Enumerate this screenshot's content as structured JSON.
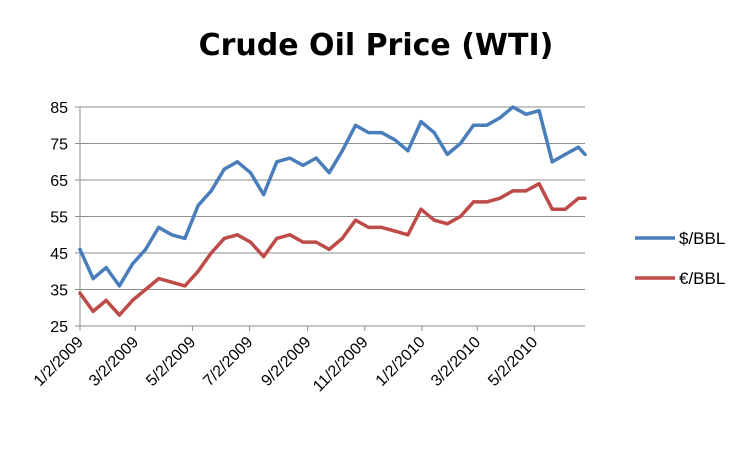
{
  "chart_data": {
    "type": "line",
    "title": "Crude Oil Price (WTI)",
    "xlabel": "",
    "ylabel": "",
    "ylim": [
      25,
      85
    ],
    "yticks": [
      25,
      35,
      45,
      55,
      65,
      75,
      85
    ],
    "grid": "horizontal",
    "legend_position": "right",
    "x_tick_labels": [
      "1/2/2009",
      "3/2/2009",
      "5/2/2009",
      "7/2/2009",
      "9/2/2009",
      "11/2/2009",
      "1/2/2010",
      "3/2/2010",
      "5/2/2010"
    ],
    "x": [
      "2009-01-02",
      "2009-01-16",
      "2009-01-30",
      "2009-02-13",
      "2009-02-27",
      "2009-03-13",
      "2009-03-27",
      "2009-04-10",
      "2009-04-24",
      "2009-05-08",
      "2009-05-22",
      "2009-06-05",
      "2009-06-19",
      "2009-07-03",
      "2009-07-17",
      "2009-07-31",
      "2009-08-14",
      "2009-08-28",
      "2009-09-11",
      "2009-09-25",
      "2009-10-09",
      "2009-10-23",
      "2009-11-06",
      "2009-11-20",
      "2009-12-04",
      "2009-12-18",
      "2010-01-01",
      "2010-01-15",
      "2010-01-29",
      "2010-02-12",
      "2010-02-26",
      "2010-03-12",
      "2010-03-26",
      "2010-04-09",
      "2010-04-23",
      "2010-05-07",
      "2010-05-21",
      "2010-06-04",
      "2010-06-18",
      "2010-06-25"
    ],
    "series": [
      {
        "name": "$/BBL",
        "color": "#4a7ebb",
        "values": [
          46,
          38,
          41,
          36,
          42,
          46,
          52,
          50,
          49,
          58,
          62,
          68,
          70,
          67,
          61,
          70,
          71,
          69,
          71,
          67,
          73,
          80,
          78,
          78,
          76,
          73,
          81,
          78,
          72,
          75,
          80,
          80,
          82,
          85,
          83,
          84,
          70,
          72,
          74,
          72
        ]
      },
      {
        "name": "€/BBL",
        "color": "#be4b48",
        "values": [
          34,
          29,
          32,
          28,
          32,
          35,
          38,
          37,
          36,
          40,
          45,
          49,
          50,
          48,
          44,
          49,
          50,
          48,
          48,
          46,
          49,
          54,
          52,
          52,
          51,
          50,
          57,
          54,
          53,
          55,
          59,
          59,
          60,
          62,
          62,
          64,
          57,
          57,
          60,
          60
        ]
      }
    ]
  }
}
